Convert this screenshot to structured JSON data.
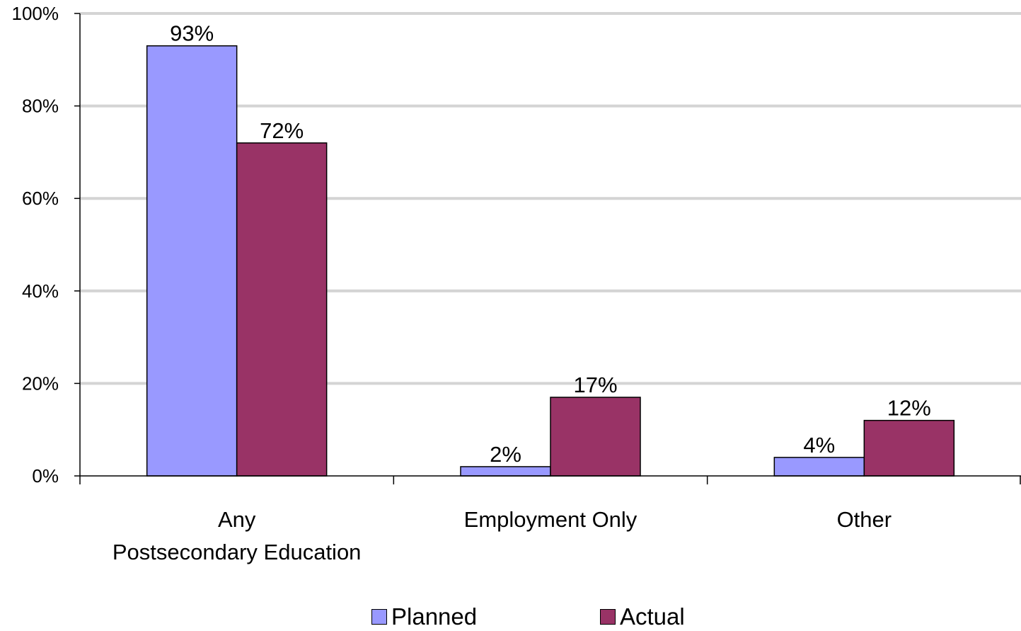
{
  "chart_data": {
    "type": "bar",
    "categories": [
      "Any\nPostsecondary Education",
      "Employment Only",
      "Other"
    ],
    "series": [
      {
        "name": "Planned",
        "values": [
          93,
          2,
          4
        ],
        "labels": [
          "93%",
          "2%",
          "4%"
        ],
        "color": "#9999FF"
      },
      {
        "name": "Actual",
        "values": [
          72,
          17,
          12
        ],
        "labels": [
          "72%",
          "17%",
          "12%"
        ],
        "color": "#993366"
      }
    ],
    "yticks": [
      "0%",
      "20%",
      "40%",
      "60%",
      "80%",
      "100%"
    ],
    "ylim": [
      0,
      100
    ],
    "grid": true,
    "legend_position": "bottom"
  }
}
